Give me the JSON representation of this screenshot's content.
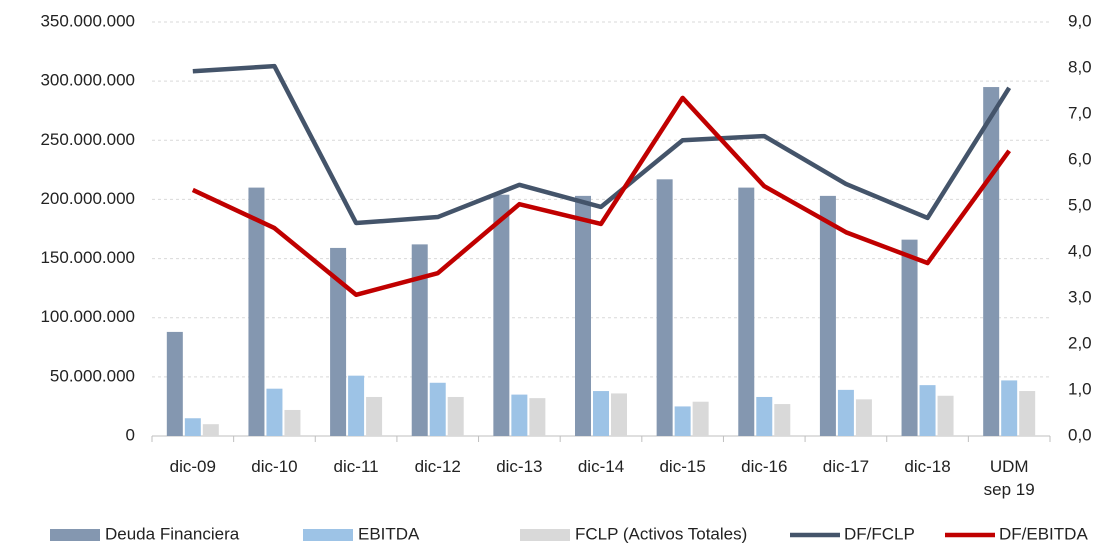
{
  "chart_data": {
    "type": "bar_line",
    "categories": [
      "dic-09",
      "dic-10",
      "dic-11",
      "dic-12",
      "dic-13",
      "dic-14",
      "dic-15",
      "dic-16",
      "dic-17",
      "dic-18",
      "UDM sep 19"
    ],
    "series": [
      {
        "name": "Deuda Financiera",
        "type": "bar",
        "color": "#8497b0",
        "values": [
          88000000,
          210000000,
          159000000,
          162000000,
          204000000,
          203000000,
          217000000,
          210000000,
          203000000,
          166000000,
          295000000
        ]
      },
      {
        "name": "EBITDA",
        "type": "bar",
        "color": "#9dc3e6",
        "values": [
          15000000,
          40000000,
          51000000,
          45000000,
          35000000,
          38000000,
          25000000,
          33000000,
          39000000,
          43000000,
          47000000
        ]
      },
      {
        "name": "FCLP (Activos Totales)",
        "type": "bar",
        "color": "#d9d9d9",
        "values": [
          10000000,
          22000000,
          33000000,
          33000000,
          32000000,
          36000000,
          29000000,
          27000000,
          31000000,
          34000000,
          38000000
        ]
      },
      {
        "name": "DF/FCLP",
        "type": "line",
        "axis": "y2",
        "color": "#44546a",
        "values": [
          7.93,
          8.04,
          4.63,
          4.76,
          5.46,
          4.98,
          6.43,
          6.52,
          5.48,
          4.74,
          7.57
        ]
      },
      {
        "name": "DF/EBITDA",
        "type": "line",
        "axis": "y2",
        "color": "#c00000",
        "values": [
          5.35,
          4.52,
          3.07,
          3.54,
          5.04,
          4.61,
          7.35,
          5.43,
          4.43,
          3.76,
          6.2
        ]
      }
    ],
    "ylim": [
      0,
      350000000
    ],
    "yticks": [
      0,
      {
        "value": 50000000,
        "label": "50.000.000"
      },
      {
        "value": 100000000,
        "label": "100.000.000"
      },
      {
        "value": 150000000,
        "label": "150.000.000"
      },
      {
        "value": 200000000,
        "label": "200.000.000"
      },
      {
        "value": 250000000,
        "label": "250.000.000"
      },
      {
        "value": 300000000,
        "label": "300.000.000"
      },
      {
        "value": 350000000,
        "label": "350.000.000"
      }
    ],
    "y2lim": [
      0,
      9
    ],
    "y2ticks": [
      {
        "value": 0,
        "label": "0,0"
      },
      {
        "value": 1,
        "label": "1,0"
      },
      {
        "value": 2,
        "label": "2,0"
      },
      {
        "value": 3,
        "label": "3,0"
      },
      {
        "value": 4,
        "label": "4,0"
      },
      {
        "value": 5,
        "label": "5,0"
      },
      {
        "value": 6,
        "label": "6,0"
      },
      {
        "value": 7,
        "label": "7,0"
      },
      {
        "value": 8,
        "label": "8,0"
      },
      {
        "value": 9,
        "label": "9,0"
      }
    ],
    "grid": true,
    "legend": "bottom"
  }
}
